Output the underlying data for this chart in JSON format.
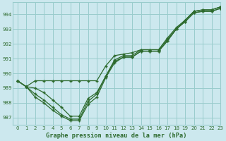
{
  "title": "Graphe pression niveau de la mer (hPa)",
  "background_color": "#cce8ee",
  "grid_color": "#99cccc",
  "line_color": "#2d6a2d",
  "xlim": [
    -0.5,
    23
  ],
  "ylim": [
    986.5,
    994.8
  ],
  "yticks": [
    987,
    988,
    989,
    990,
    991,
    992,
    993,
    994
  ],
  "xticks": [
    0,
    1,
    2,
    3,
    4,
    5,
    6,
    7,
    8,
    9,
    10,
    11,
    12,
    13,
    14,
    15,
    16,
    17,
    18,
    19,
    20,
    21,
    22,
    23
  ],
  "series": [
    [
      989.5,
      989.1,
      989.5,
      989.5,
      989.5,
      989.5,
      989.5,
      989.5,
      989.5,
      989.5,
      990.5,
      991.2,
      991.3,
      991.4,
      991.6,
      991.6,
      991.6,
      992.4,
      993.1,
      993.6,
      994.2,
      994.3,
      994.3,
      994.5
    ],
    [
      989.5,
      989.1,
      989.0,
      988.7,
      988.2,
      987.7,
      987.1,
      987.1,
      988.3,
      988.7,
      989.8,
      990.8,
      991.1,
      991.1,
      991.5,
      991.5,
      991.5,
      992.2,
      993.0,
      993.5,
      994.1,
      994.2,
      994.2,
      994.4
    ],
    [
      989.5,
      989.1,
      988.6,
      988.2,
      987.7,
      987.2,
      986.9,
      986.9,
      988.1,
      988.6,
      989.8,
      990.9,
      991.2,
      991.2,
      991.6,
      991.6,
      991.6,
      992.3,
      993.0,
      993.6,
      994.2,
      994.3,
      994.3,
      994.5
    ],
    [
      989.5,
      989.1,
      988.4,
      988.0,
      987.5,
      987.1,
      986.8,
      986.8,
      987.9,
      988.4,
      989.7,
      990.7,
      991.1,
      991.1,
      991.5,
      991.5,
      991.5,
      992.2,
      993.0,
      993.5,
      994.1,
      994.2,
      994.2,
      994.4
    ]
  ]
}
